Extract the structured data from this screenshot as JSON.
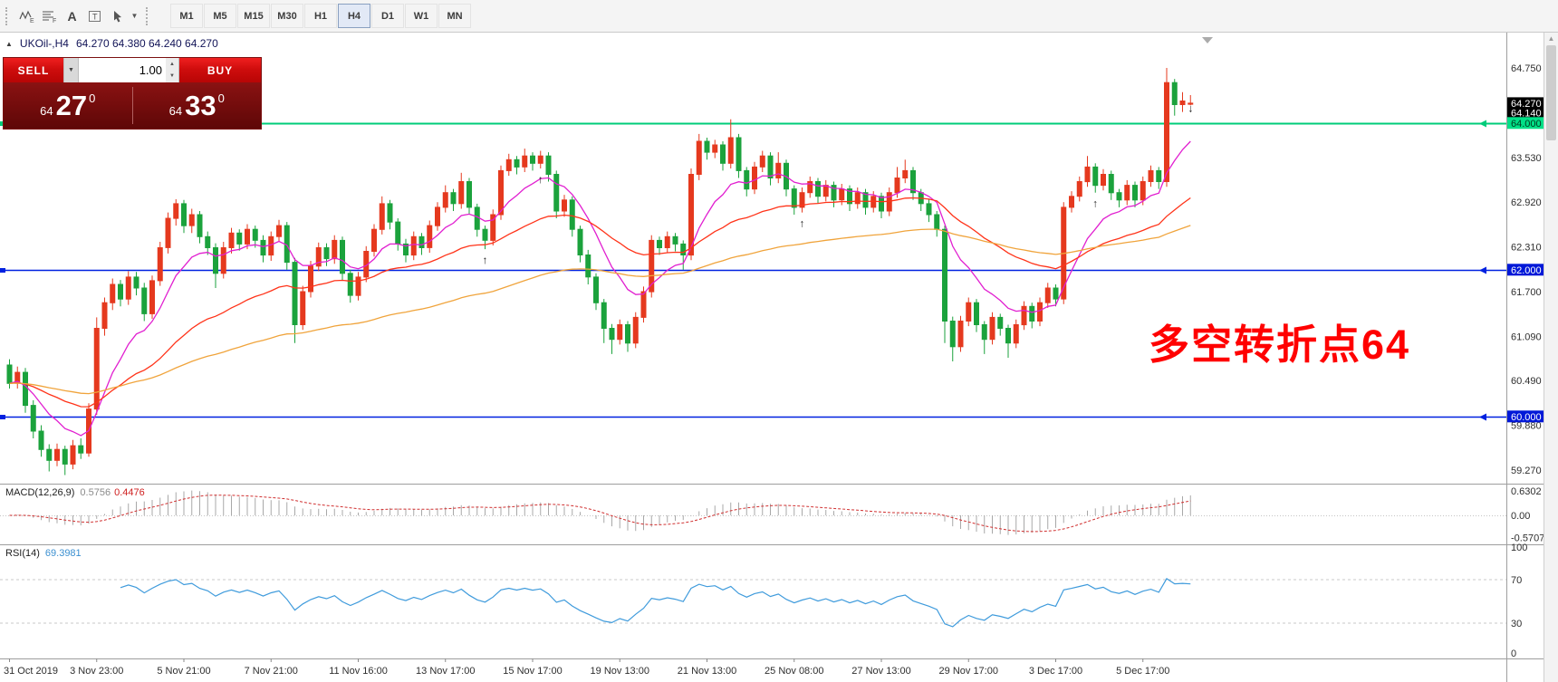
{
  "toolbar": {
    "tools": [
      {
        "name": "elliott-wave",
        "glyph": "E"
      },
      {
        "name": "fibonacci-lines",
        "glyph": "F"
      },
      {
        "name": "text-tool",
        "glyph": "A"
      },
      {
        "name": "text-label",
        "glyph": "T"
      },
      {
        "name": "arrow-objects",
        "glyph": ""
      }
    ],
    "timeframes": [
      "M1",
      "M5",
      "M15",
      "M30",
      "H1",
      "H4",
      "D1",
      "W1",
      "MN"
    ],
    "active_timeframe": "H4"
  },
  "icons": {
    "collapse": "▲",
    "caret_down": "▼",
    "spin_up": "▲",
    "spin_down": "▼",
    "scroll_up": "▲",
    "arrow_up_marker": "↑",
    "arrow_down_marker": "↓"
  },
  "chart_header": {
    "symbol": "UKOil-,H4",
    "ohlc": "64.270 64.380 64.240 64.270"
  },
  "trade_panel": {
    "sell_label": "SELL",
    "buy_label": "BUY",
    "volume": "1.00",
    "sell_price": {
      "small": "64",
      "big": "27",
      "sup": "0"
    },
    "buy_price": {
      "small": "64",
      "big": "33",
      "sup": "0"
    }
  },
  "price_axis": {
    "current_labels": [
      {
        "text": "64.140",
        "value": 64.14
      },
      {
        "text": "64.270",
        "value": 64.27
      }
    ]
  },
  "hlines": [
    {
      "label": "64.000",
      "value": 64.0,
      "color": "#00cc7a",
      "label_bg": "#00e087",
      "label_fg": "#00381e"
    },
    {
      "label": "62.000",
      "value": 62.0,
      "color": "#0021e0",
      "label_bg": "#0018d8",
      "label_fg": "#ffffff"
    },
    {
      "label": "60.000",
      "value": 60.0,
      "color": "#0021e0",
      "label_bg": "#0018d8",
      "label_fg": "#ffffff"
    }
  ],
  "annotation": {
    "text": "多空转折点64",
    "color": "#ff0000"
  },
  "macd": {
    "label": "MACD(12,26,9)",
    "value_main": "0.5756",
    "value_signal": "0.4476",
    "params": {
      "fast": 12,
      "slow": 26,
      "signal": 9
    },
    "axis": [
      {
        "text": "0.6302",
        "value": 0.6302
      },
      {
        "text": "0.00",
        "value": 0
      },
      {
        "text": "-0.5707",
        "value": -0.5707
      }
    ]
  },
  "rsi": {
    "label": "RSI(14)",
    "value": "69.3981",
    "period": 14,
    "levels": [
      70,
      30
    ],
    "axis": [
      {
        "text": "100",
        "value": 100
      },
      {
        "text": "70",
        "value": 70
      },
      {
        "text": "30",
        "value": 30
      },
      {
        "text": "0",
        "value": 0
      }
    ]
  },
  "markers": [
    {
      "index": 60,
      "dir": "up"
    },
    {
      "index": 67,
      "dir": "up"
    },
    {
      "index": 100,
      "dir": "up"
    },
    {
      "index": 137,
      "dir": "up"
    },
    {
      "index": 148,
      "dir": "down"
    }
  ],
  "chart_data": {
    "type": "candlestick",
    "symbol": "UKOil-",
    "timeframe": "H4",
    "title": "UKOil-,H4",
    "ylim": [
      59.08,
      65.18
    ],
    "bull_color": "#e5391e",
    "bear_color": "#1ba23c",
    "price_ticks": [
      {
        "text": "64.750",
        "value": 64.75
      },
      {
        "text": "63.530",
        "value": 63.53
      },
      {
        "text": "62.920",
        "value": 62.92
      },
      {
        "text": "62.310",
        "value": 62.31
      },
      {
        "text": "61.700",
        "value": 61.7
      },
      {
        "text": "61.090",
        "value": 61.09
      },
      {
        "text": "60.490",
        "value": 60.49
      },
      {
        "text": "59.880",
        "value": 59.88
      },
      {
        "text": "59.270",
        "value": 59.27
      }
    ],
    "time_labels": [
      "31 Oct 2019",
      "3 Nov 23:00",
      "5 Nov 21:00",
      "7 Nov 21:00",
      "11 Nov 16:00",
      "13 Nov 17:00",
      "15 Nov 17:00",
      "19 Nov 13:00",
      "21 Nov 13:00",
      "25 Nov 08:00",
      "27 Nov 13:00",
      "29 Nov 17:00",
      "3 Dec 17:00",
      "5 Dec 17:00"
    ],
    "moving_averages": [
      {
        "name": "ma-fast-magenta",
        "period": 10,
        "color": "#e11fd0"
      },
      {
        "name": "ma-mid-red",
        "period": 34,
        "color": "#ff3319"
      },
      {
        "name": "ma-slow-orange",
        "period": 90,
        "color": "#f0a43c"
      }
    ],
    "candles": [
      [
        60.7,
        60.78,
        60.38,
        60.45
      ],
      [
        60.45,
        60.68,
        60.38,
        60.6
      ],
      [
        60.6,
        60.66,
        60.05,
        60.15
      ],
      [
        60.15,
        60.22,
        59.7,
        59.8
      ],
      [
        59.8,
        59.88,
        59.45,
        59.55
      ],
      [
        59.55,
        59.62,
        59.25,
        59.4
      ],
      [
        59.4,
        59.63,
        59.32,
        59.55
      ],
      [
        59.55,
        59.6,
        59.2,
        59.35
      ],
      [
        59.35,
        59.68,
        59.28,
        59.6
      ],
      [
        59.6,
        59.7,
        59.42,
        59.5
      ],
      [
        59.5,
        60.18,
        59.45,
        60.1
      ],
      [
        60.1,
        61.35,
        60.02,
        61.2
      ],
      [
        61.2,
        61.62,
        61.1,
        61.55
      ],
      [
        61.55,
        61.88,
        61.45,
        61.8
      ],
      [
        61.8,
        61.86,
        61.5,
        61.6
      ],
      [
        61.6,
        61.98,
        61.52,
        61.9
      ],
      [
        61.9,
        61.97,
        61.65,
        61.75
      ],
      [
        61.75,
        61.82,
        61.3,
        61.4
      ],
      [
        61.4,
        61.92,
        61.33,
        61.85
      ],
      [
        61.85,
        62.38,
        61.78,
        62.3
      ],
      [
        62.3,
        62.78,
        62.22,
        62.7
      ],
      [
        62.7,
        62.96,
        62.6,
        62.9
      ],
      [
        62.9,
        62.95,
        62.5,
        62.6
      ],
      [
        62.6,
        62.83,
        62.5,
        62.75
      ],
      [
        62.75,
        62.8,
        62.36,
        62.45
      ],
      [
        62.45,
        62.52,
        62.2,
        62.3
      ],
      [
        62.3,
        62.36,
        61.75,
        61.95
      ],
      [
        61.95,
        62.38,
        61.88,
        62.3
      ],
      [
        62.3,
        62.57,
        62.22,
        62.5
      ],
      [
        62.5,
        62.55,
        62.26,
        62.35
      ],
      [
        62.35,
        62.62,
        62.28,
        62.55
      ],
      [
        62.55,
        62.6,
        62.3,
        62.4
      ],
      [
        62.4,
        62.47,
        62.1,
        62.2
      ],
      [
        62.2,
        62.52,
        62.12,
        62.45
      ],
      [
        62.45,
        62.68,
        62.38,
        62.6
      ],
      [
        62.6,
        62.65,
        62.0,
        62.1
      ],
      [
        62.1,
        62.16,
        61.0,
        61.25
      ],
      [
        61.25,
        61.78,
        61.18,
        61.7
      ],
      [
        61.7,
        62.12,
        61.62,
        62.05
      ],
      [
        62.05,
        62.37,
        61.98,
        62.3
      ],
      [
        62.3,
        62.36,
        62.05,
        62.15
      ],
      [
        62.15,
        62.47,
        62.08,
        62.4
      ],
      [
        62.4,
        62.45,
        61.85,
        61.95
      ],
      [
        61.95,
        62.0,
        61.55,
        61.65
      ],
      [
        61.65,
        61.97,
        61.58,
        61.9
      ],
      [
        61.9,
        62.32,
        61.83,
        62.25
      ],
      [
        62.25,
        62.62,
        62.18,
        62.55
      ],
      [
        62.55,
        63.0,
        62.48,
        62.9
      ],
      [
        62.9,
        62.95,
        62.55,
        62.65
      ],
      [
        62.65,
        62.7,
        62.26,
        62.35
      ],
      [
        62.35,
        62.42,
        62.1,
        62.2
      ],
      [
        62.2,
        62.52,
        62.13,
        62.45
      ],
      [
        62.45,
        62.5,
        62.2,
        62.3
      ],
      [
        62.3,
        62.67,
        62.23,
        62.6
      ],
      [
        62.6,
        62.92,
        62.53,
        62.85
      ],
      [
        62.85,
        63.15,
        62.78,
        63.05
      ],
      [
        63.05,
        63.1,
        62.8,
        62.9
      ],
      [
        62.9,
        63.32,
        62.83,
        63.2
      ],
      [
        63.2,
        63.25,
        62.75,
        62.85
      ],
      [
        62.85,
        62.9,
        62.45,
        62.55
      ],
      [
        62.55,
        62.6,
        62.28,
        62.4
      ],
      [
        62.4,
        62.82,
        62.33,
        62.75
      ],
      [
        62.75,
        63.42,
        62.68,
        63.35
      ],
      [
        63.35,
        63.58,
        63.28,
        63.5
      ],
      [
        63.5,
        63.55,
        63.3,
        63.4
      ],
      [
        63.4,
        63.65,
        63.33,
        63.55
      ],
      [
        63.55,
        63.6,
        63.35,
        63.45
      ],
      [
        63.45,
        63.62,
        63.38,
        63.55
      ],
      [
        63.55,
        63.6,
        63.2,
        63.3
      ],
      [
        63.3,
        63.35,
        62.7,
        62.8
      ],
      [
        62.8,
        63.02,
        62.72,
        62.95
      ],
      [
        62.95,
        63.0,
        62.45,
        62.55
      ],
      [
        62.55,
        62.6,
        62.1,
        62.2
      ],
      [
        62.2,
        62.27,
        61.8,
        61.9
      ],
      [
        61.9,
        61.95,
        61.45,
        61.55
      ],
      [
        61.55,
        61.6,
        61.0,
        61.2
      ],
      [
        61.2,
        61.26,
        60.85,
        61.05
      ],
      [
        61.05,
        61.32,
        60.98,
        61.25
      ],
      [
        61.25,
        61.3,
        60.88,
        61.0
      ],
      [
        61.0,
        61.42,
        60.93,
        61.35
      ],
      [
        61.35,
        61.77,
        61.28,
        61.7
      ],
      [
        61.7,
        62.47,
        61.62,
        62.4
      ],
      [
        62.4,
        62.45,
        62.2,
        62.3
      ],
      [
        62.3,
        62.52,
        62.23,
        62.45
      ],
      [
        62.45,
        62.5,
        62.25,
        62.35
      ],
      [
        62.35,
        62.4,
        62.0,
        62.2
      ],
      [
        62.2,
        63.38,
        62.13,
        63.3
      ],
      [
        63.3,
        63.85,
        63.22,
        63.75
      ],
      [
        63.75,
        63.8,
        63.5,
        63.6
      ],
      [
        63.6,
        63.77,
        63.52,
        63.7
      ],
      [
        63.7,
        63.75,
        63.35,
        63.45
      ],
      [
        63.45,
        64.05,
        63.38,
        63.8
      ],
      [
        63.8,
        63.85,
        63.25,
        63.35
      ],
      [
        63.35,
        63.4,
        63.0,
        63.1
      ],
      [
        63.1,
        63.47,
        63.03,
        63.4
      ],
      [
        63.4,
        63.62,
        63.33,
        63.55
      ],
      [
        63.55,
        63.6,
        63.15,
        63.25
      ],
      [
        63.25,
        63.6,
        63.18,
        63.45
      ],
      [
        63.45,
        63.5,
        63.0,
        63.1
      ],
      [
        63.1,
        63.15,
        62.75,
        62.85
      ],
      [
        62.85,
        63.12,
        62.78,
        63.05
      ],
      [
        63.05,
        63.27,
        62.98,
        63.2
      ],
      [
        63.2,
        63.25,
        62.9,
        63.0
      ],
      [
        63.0,
        63.22,
        62.93,
        63.15
      ],
      [
        63.15,
        63.2,
        62.85,
        62.95
      ],
      [
        62.95,
        63.17,
        62.88,
        63.1
      ],
      [
        63.1,
        63.15,
        62.8,
        62.9
      ],
      [
        62.9,
        63.12,
        62.83,
        63.05
      ],
      [
        63.05,
        63.1,
        62.75,
        62.85
      ],
      [
        62.85,
        63.07,
        62.78,
        63.0
      ],
      [
        63.0,
        63.05,
        62.7,
        62.8
      ],
      [
        62.8,
        63.12,
        62.73,
        63.05
      ],
      [
        63.05,
        63.4,
        62.98,
        63.25
      ],
      [
        63.25,
        63.5,
        63.18,
        63.35
      ],
      [
        63.35,
        63.4,
        62.95,
        63.05
      ],
      [
        63.05,
        63.1,
        62.8,
        62.9
      ],
      [
        62.9,
        62.97,
        62.65,
        62.75
      ],
      [
        62.75,
        62.8,
        62.45,
        62.55
      ],
      [
        62.55,
        62.6,
        61.0,
        61.3
      ],
      [
        61.3,
        61.36,
        60.75,
        60.95
      ],
      [
        60.95,
        61.37,
        60.88,
        61.3
      ],
      [
        61.3,
        61.62,
        61.23,
        61.55
      ],
      [
        61.55,
        61.6,
        61.15,
        61.25
      ],
      [
        61.25,
        61.3,
        60.85,
        61.05
      ],
      [
        61.05,
        61.42,
        60.98,
        61.35
      ],
      [
        61.35,
        61.4,
        61.1,
        61.2
      ],
      [
        61.2,
        61.25,
        60.8,
        61.0
      ],
      [
        61.0,
        61.32,
        60.93,
        61.25
      ],
      [
        61.25,
        61.57,
        61.18,
        61.5
      ],
      [
        61.5,
        61.55,
        61.2,
        61.3
      ],
      [
        61.3,
        61.62,
        61.23,
        61.55
      ],
      [
        61.55,
        61.82,
        61.48,
        61.75
      ],
      [
        61.75,
        61.8,
        61.5,
        61.6
      ],
      [
        61.6,
        62.92,
        61.53,
        62.85
      ],
      [
        62.85,
        63.07,
        62.78,
        63.0
      ],
      [
        63.0,
        63.27,
        62.93,
        63.2
      ],
      [
        63.2,
        63.55,
        63.13,
        63.4
      ],
      [
        63.4,
        63.45,
        63.05,
        63.15
      ],
      [
        63.15,
        63.37,
        63.08,
        63.3
      ],
      [
        63.3,
        63.35,
        62.95,
        63.05
      ],
      [
        63.05,
        63.1,
        62.85,
        62.95
      ],
      [
        62.95,
        63.22,
        62.88,
        63.15
      ],
      [
        63.15,
        63.2,
        62.85,
        62.95
      ],
      [
        62.95,
        63.27,
        62.88,
        63.2
      ],
      [
        63.2,
        63.42,
        63.13,
        63.35
      ],
      [
        63.35,
        63.4,
        63.1,
        63.2
      ],
      [
        63.2,
        64.75,
        63.13,
        64.55
      ],
      [
        64.55,
        64.6,
        64.1,
        64.25
      ],
      [
        64.25,
        64.42,
        64.15,
        64.3
      ],
      [
        64.27,
        64.38,
        64.24,
        64.27
      ]
    ]
  }
}
